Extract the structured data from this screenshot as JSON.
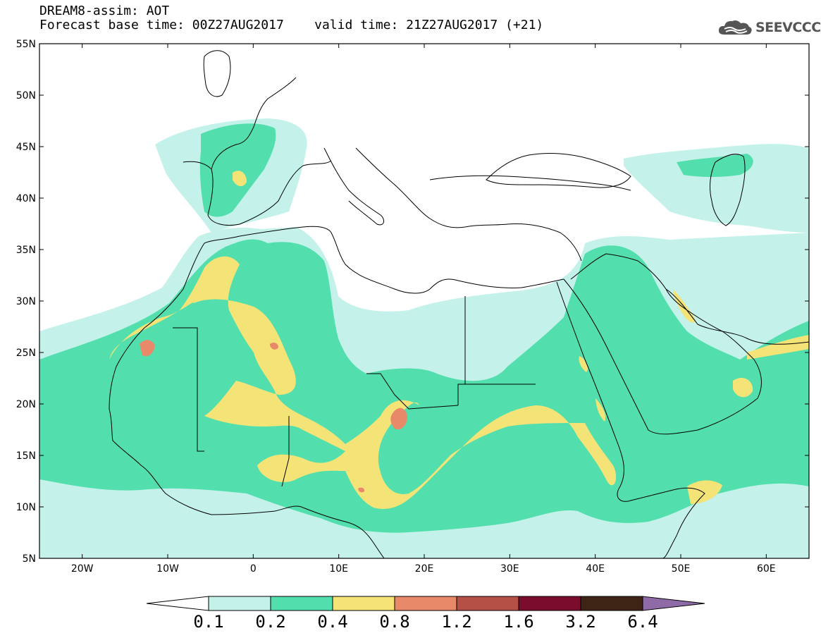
{
  "header": {
    "line1": "DREAM8-assim: AOT",
    "line2": "Forecast base time: 00Z27AUG2017    valid time: 21Z27AUG2017 (+21)"
  },
  "logo": {
    "text": "SEEVCCC",
    "icon": "cloud-icon"
  },
  "map": {
    "lon_range": [
      -25,
      65
    ],
    "lat_range": [
      5,
      55
    ],
    "lat_ticks": [
      {
        "value": 55,
        "label": "55N"
      },
      {
        "value": 50,
        "label": "50N"
      },
      {
        "value": 45,
        "label": "45N"
      },
      {
        "value": 40,
        "label": "40N"
      },
      {
        "value": 35,
        "label": "35N"
      },
      {
        "value": 30,
        "label": "30N"
      },
      {
        "value": 25,
        "label": "25N"
      },
      {
        "value": 20,
        "label": "20N"
      },
      {
        "value": 15,
        "label": "15N"
      },
      {
        "value": 10,
        "label": "10N"
      },
      {
        "value": 5,
        "label": "5N"
      }
    ],
    "lon_ticks": [
      {
        "value": -20,
        "label": "20W"
      },
      {
        "value": -10,
        "label": "10W"
      },
      {
        "value": 0,
        "label": "0"
      },
      {
        "value": 10,
        "label": "10E"
      },
      {
        "value": 20,
        "label": "20E"
      },
      {
        "value": 30,
        "label": "30E"
      },
      {
        "value": 40,
        "label": "40E"
      },
      {
        "value": 50,
        "label": "50E"
      },
      {
        "value": 60,
        "label": "60E"
      }
    ],
    "background_color": "#ffffff"
  },
  "colorbar": {
    "levels": [
      "0.1",
      "0.2",
      "0.4",
      "0.8",
      "1.2",
      "1.6",
      "3.2",
      "6.4"
    ],
    "colors": [
      "#c4f2ea",
      "#52dfad",
      "#f4e477",
      "#e8896a",
      "#b55046",
      "#7a0d2c",
      "#3e2415",
      "#8e6aa6"
    ],
    "under_color": "#ffffff"
  }
}
